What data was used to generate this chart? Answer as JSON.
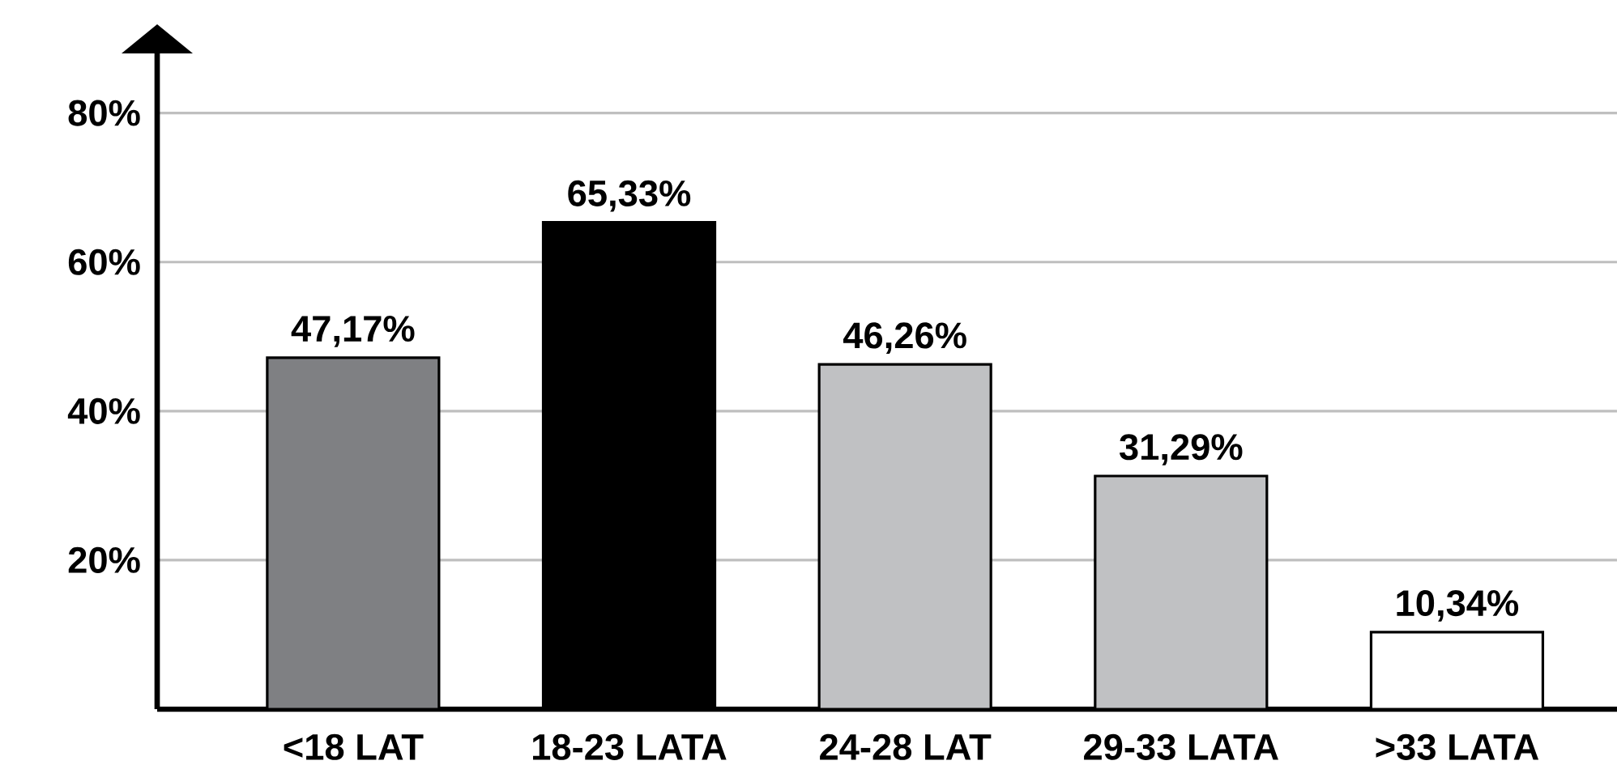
{
  "chart_data": {
    "type": "bar",
    "categories": [
      "<18 LAT",
      "18-23 LATA",
      "24-28 LAT",
      "29-33 LATA",
      ">33 LATA"
    ],
    "values": [
      47.17,
      65.33,
      46.26,
      31.29,
      10.34
    ],
    "colors": [
      "#7f8083",
      "#000000",
      "#c0c1c3",
      "#c0c1c3",
      "#ffffff"
    ],
    "value_labels": [
      "47,17%",
      "65,33%",
      "46,26%",
      "31,29%",
      "10,34%"
    ],
    "ylim": [
      0,
      88
    ],
    "yticks": [
      {
        "value": 20,
        "label": "20%"
      },
      {
        "value": 40,
        "label": "40%"
      },
      {
        "value": 60,
        "label": "60%"
      },
      {
        "value": 80,
        "label": "80%"
      }
    ],
    "grid": "y"
  }
}
